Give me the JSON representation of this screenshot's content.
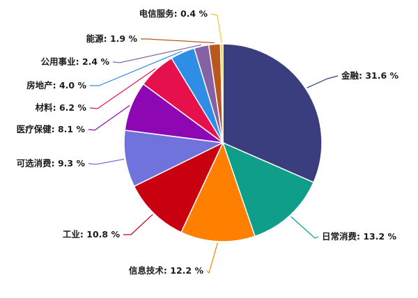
{
  "chart_data": {
    "type": "pie",
    "unit": "%",
    "slices": [
      {
        "name": "金融",
        "value": 31.6,
        "label": "金融: 31.6 %",
        "color": "#3a3d7e"
      },
      {
        "name": "日常消费",
        "value": 13.2,
        "label": "日常消费: 13.2 %",
        "color": "#0e9e8a"
      },
      {
        "name": "信息技术",
        "value": 12.2,
        "label": "信息技术: 12.2 %",
        "color": "#ff7f00"
      },
      {
        "name": "工业",
        "value": 10.8,
        "label": "工业: 10.8 %",
        "color": "#c8000f"
      },
      {
        "name": "可选消费",
        "value": 9.3,
        "label": "可选消费: 9.3 %",
        "color": "#6f73db"
      },
      {
        "name": "医疗保健",
        "value": 8.1,
        "label": "医疗保健: 8.1 %",
        "color": "#8d07b3"
      },
      {
        "name": "材料",
        "value": 6.2,
        "label": "材料: 6.2 %",
        "color": "#e6104d"
      },
      {
        "name": "房地产",
        "value": 4.0,
        "label": "房地产: 4.0 %",
        "color": "#2e8ee6"
      },
      {
        "name": "公用事业",
        "value": 2.4,
        "label": "公用事业: 2.4 %",
        "color": "#8462a4"
      },
      {
        "name": "能源",
        "value": 1.9,
        "label": "能源: 1.9 %",
        "color": "#b8571f"
      },
      {
        "name": "电信服务",
        "value": 0.4,
        "label": "电信服务: 0.4 %",
        "color": "#f2c62f"
      }
    ]
  }
}
